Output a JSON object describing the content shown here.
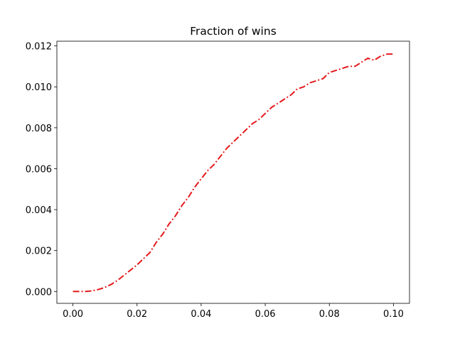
{
  "chart_data": {
    "type": "line",
    "title": "Fraction of wins",
    "x": [
      0,
      0.002,
      0.004,
      0.006,
      0.008,
      0.01,
      0.012,
      0.014,
      0.016,
      0.018,
      0.02,
      0.022,
      0.024,
      0.026,
      0.028,
      0.03,
      0.032,
      0.034,
      0.036,
      0.038,
      0.04,
      0.042,
      0.044,
      0.046,
      0.048,
      0.05,
      0.052,
      0.054,
      0.056,
      0.058,
      0.06,
      0.062,
      0.064,
      0.066,
      0.068,
      0.07,
      0.072,
      0.074,
      0.076,
      0.078,
      0.08,
      0.082,
      0.084,
      0.086,
      0.088,
      0.09,
      0.092,
      0.094,
      0.096,
      0.098,
      0.1
    ],
    "values": [
      0,
      0,
      0,
      3e-05,
      0.0001,
      0.0002,
      0.00035,
      0.00055,
      0.0008,
      0.00105,
      0.0013,
      0.0016,
      0.0019,
      0.0024,
      0.0028,
      0.0033,
      0.0037,
      0.0042,
      0.0046,
      0.0051,
      0.0055,
      0.0059,
      0.0062,
      0.0066,
      0.007,
      0.0073,
      0.0076,
      0.0079,
      0.0082,
      0.0084,
      0.0087,
      0.009,
      0.0092,
      0.0094,
      0.0096,
      0.0099,
      0.01,
      0.0102,
      0.0103,
      0.0104,
      0.0107,
      0.0108,
      0.0109,
      0.011,
      0.011,
      0.0112,
      0.0114,
      0.0113,
      0.0115,
      0.0116,
      0.0116
    ],
    "color": "#e41a1c",
    "linestyle": "-.",
    "xlim": [
      -0.005,
      0.105
    ],
    "ylim": [
      -0.00058,
      0.01223
    ],
    "xticks": [
      {
        "value": 0,
        "label": "0.00"
      },
      {
        "value": 0.02,
        "label": "0.02"
      },
      {
        "value": 0.04,
        "label": "0.04"
      },
      {
        "value": 0.06,
        "label": "0.06"
      },
      {
        "value": 0.08,
        "label": "0.08"
      },
      {
        "value": 0.1,
        "label": "0.10"
      }
    ],
    "yticks": [
      {
        "value": 0,
        "label": "0.000"
      },
      {
        "value": 0.002,
        "label": "0.002"
      },
      {
        "value": 0.004,
        "label": "0.004"
      },
      {
        "value": 0.006,
        "label": "0.006"
      },
      {
        "value": 0.008,
        "label": "0.008"
      },
      {
        "value": 0.01,
        "label": "0.010"
      },
      {
        "value": 0.012,
        "label": "0.012"
      }
    ],
    "grid": false
  }
}
